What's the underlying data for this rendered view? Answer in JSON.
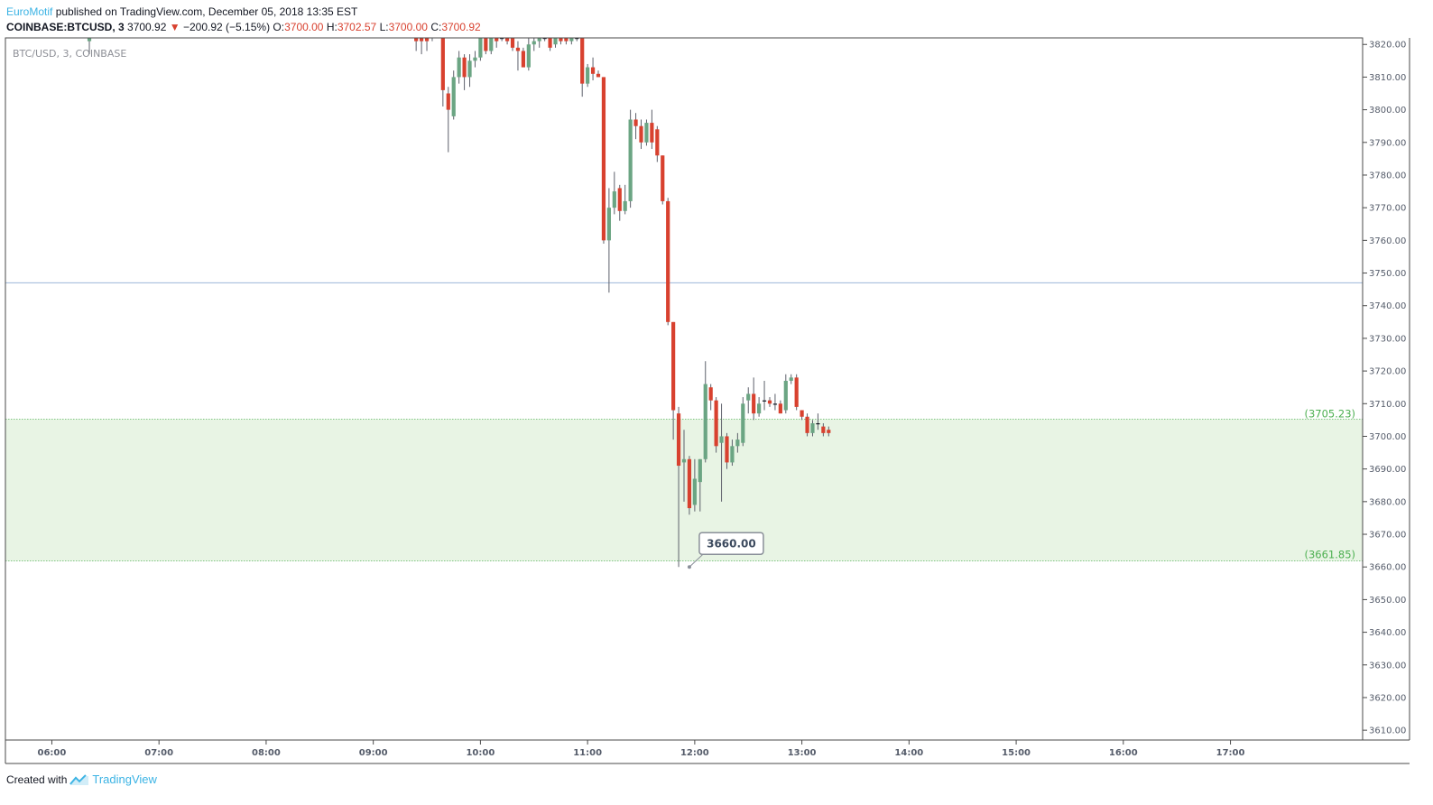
{
  "header": {
    "author": "EuroMotif",
    "published_text": " published on TradingView.com, December 05, 2018 13:35 EST",
    "symbol": "COINBASE:BTCUSD, 3",
    "last_price": "3700.92",
    "change_arrow": "▼",
    "change": "−200.92 (−5.15%)",
    "open_label": "O:",
    "open_value": "3700.00",
    "high_label": "H:",
    "high_value": "3702.57",
    "low_label": "L:",
    "low_value": "3700.00",
    "close_label": "C:",
    "close_value": "3700.92"
  },
  "footer": {
    "created_with": "Created with",
    "brand": "TradingView"
  },
  "chart_data": {
    "type": "candlestick",
    "symbol_label": "BTC/USD, 3, COINBASE",
    "x_tick_labels": [
      "06:00",
      "07:00",
      "08:00",
      "09:00",
      "10:00",
      "11:00",
      "12:00",
      "13:00",
      "14:00",
      "15:00",
      "16:00",
      "17:00"
    ],
    "y_tick_labels": [
      "3820.00",
      "3810.00",
      "3800.00",
      "3790.00",
      "3780.00",
      "3770.00",
      "3760.00",
      "3750.00",
      "3740.00",
      "3730.00",
      "3720.00",
      "3710.00",
      "3700.00",
      "3690.00",
      "3680.00",
      "3670.00",
      "3660.00",
      "3650.00",
      "3640.00",
      "3630.00",
      "3620.00",
      "3610.00"
    ],
    "ylim": [
      3607,
      3822
    ],
    "x_range_minutes": [
      334,
      1094
    ],
    "grid": false,
    "colors": {
      "up": "#6ba583",
      "down": "#d8412f",
      "zone_fill": "#e8f4e4",
      "zone_line": "#81c784",
      "hline": "#9cb7d8"
    },
    "horizontal_line": {
      "value": 3747
    },
    "zone": {
      "upper": 3705.23,
      "lower": 3661.85,
      "upper_label": "(3705.23)",
      "lower_label": "(3661.85)"
    },
    "callout": {
      "label": "3660.00",
      "value": 3660,
      "time": "11:57"
    },
    "candles": [
      {
        "t": "06:21",
        "o": 3821,
        "h": 3824,
        "l": 3817,
        "c": 3823
      },
      {
        "t": "09:24",
        "o": 3823,
        "h": 3825,
        "l": 3818,
        "c": 3821
      },
      {
        "t": "09:27",
        "o": 3822,
        "h": 3823,
        "l": 3817,
        "c": 3821
      },
      {
        "t": "09:30",
        "o": 3822,
        "h": 3826,
        "l": 3818,
        "c": 3821
      },
      {
        "t": "09:33",
        "o": 3823,
        "h": 3826,
        "l": 3821,
        "c": 3824
      },
      {
        "t": "09:36",
        "o": 3824,
        "h": 3826,
        "l": 3823,
        "c": 3822
      },
      {
        "t": "09:39",
        "o": 3823,
        "h": 3824,
        "l": 3801,
        "c": 3806
      },
      {
        "t": "09:42",
        "o": 3805,
        "h": 3807,
        "l": 3787,
        "c": 3800
      },
      {
        "t": "09:45",
        "o": 3798,
        "h": 3812,
        "l": 3797,
        "c": 3810
      },
      {
        "t": "09:48",
        "o": 3810,
        "h": 3818,
        "l": 3808,
        "c": 3816
      },
      {
        "t": "09:51",
        "o": 3816,
        "h": 3817,
        "l": 3806,
        "c": 3810
      },
      {
        "t": "09:54",
        "o": 3810,
        "h": 3817,
        "l": 3807,
        "c": 3815
      },
      {
        "t": "09:57",
        "o": 3815,
        "h": 3818,
        "l": 3813,
        "c": 3816
      },
      {
        "t": "10:00",
        "o": 3816,
        "h": 3823,
        "l": 3815,
        "c": 3822
      },
      {
        "t": "10:03",
        "o": 3822,
        "h": 3823,
        "l": 3817,
        "c": 3818
      },
      {
        "t": "10:06",
        "o": 3818,
        "h": 3826,
        "l": 3817,
        "c": 3824
      },
      {
        "t": "10:09",
        "o": 3823,
        "h": 3824,
        "l": 3819,
        "c": 3821
      },
      {
        "t": "10:12",
        "o": 3822,
        "h": 3824,
        "l": 3821,
        "c": 3822
      },
      {
        "t": "10:15",
        "o": 3822,
        "h": 3823,
        "l": 3820,
        "c": 3821
      },
      {
        "t": "10:18",
        "o": 3823,
        "h": 3826,
        "l": 3818,
        "c": 3819
      },
      {
        "t": "10:21",
        "o": 3819,
        "h": 3821,
        "l": 3812,
        "c": 3818
      },
      {
        "t": "10:24",
        "o": 3818,
        "h": 3819,
        "l": 3813,
        "c": 3813
      },
      {
        "t": "10:27",
        "o": 3813,
        "h": 3822,
        "l": 3812,
        "c": 3820
      },
      {
        "t": "10:30",
        "o": 3820,
        "h": 3822,
        "l": 3818,
        "c": 3821
      },
      {
        "t": "10:33",
        "o": 3821,
        "h": 3822,
        "l": 3819,
        "c": 3822
      },
      {
        "t": "10:36",
        "o": 3822,
        "h": 3823,
        "l": 3821,
        "c": 3822
      },
      {
        "t": "10:39",
        "o": 3822,
        "h": 3824,
        "l": 3818,
        "c": 3819
      },
      {
        "t": "10:42",
        "o": 3820,
        "h": 3824,
        "l": 3819,
        "c": 3823
      },
      {
        "t": "10:45",
        "o": 3823,
        "h": 3824,
        "l": 3820,
        "c": 3821
      },
      {
        "t": "10:48",
        "o": 3822,
        "h": 3823,
        "l": 3820,
        "c": 3821
      },
      {
        "t": "10:51",
        "o": 3821,
        "h": 3823,
        "l": 3820,
        "c": 3822
      },
      {
        "t": "10:54",
        "o": 3822,
        "h": 3823,
        "l": 3821,
        "c": 3822
      },
      {
        "t": "10:57",
        "o": 3823,
        "h": 3824,
        "l": 3804,
        "c": 3808
      },
      {
        "t": "11:00",
        "o": 3808,
        "h": 3814,
        "l": 3807,
        "c": 3813
      },
      {
        "t": "11:03",
        "o": 3813,
        "h": 3816,
        "l": 3809,
        "c": 3811
      },
      {
        "t": "11:06",
        "o": 3811,
        "h": 3812,
        "l": 3810,
        "c": 3810
      },
      {
        "t": "11:09",
        "o": 3810,
        "h": 3810,
        "l": 3759,
        "c": 3760
      },
      {
        "t": "11:12",
        "o": 3760,
        "h": 3776,
        "l": 3744,
        "c": 3770
      },
      {
        "t": "11:15",
        "o": 3770,
        "h": 3781,
        "l": 3768,
        "c": 3775
      },
      {
        "t": "11:18",
        "o": 3776,
        "h": 3777,
        "l": 3766,
        "c": 3769
      },
      {
        "t": "11:21",
        "o": 3769,
        "h": 3777,
        "l": 3768,
        "c": 3772
      },
      {
        "t": "11:24",
        "o": 3772,
        "h": 3800,
        "l": 3770,
        "c": 3797
      },
      {
        "t": "11:27",
        "o": 3797,
        "h": 3799,
        "l": 3791,
        "c": 3795
      },
      {
        "t": "11:30",
        "o": 3795,
        "h": 3797,
        "l": 3788,
        "c": 3790
      },
      {
        "t": "11:33",
        "o": 3790,
        "h": 3797,
        "l": 3789,
        "c": 3796
      },
      {
        "t": "11:36",
        "o": 3796,
        "h": 3800,
        "l": 3788,
        "c": 3790
      },
      {
        "t": "11:39",
        "o": 3794,
        "h": 3795,
        "l": 3784,
        "c": 3786
      },
      {
        "t": "11:42",
        "o": 3786,
        "h": 3786,
        "l": 3771,
        "c": 3772
      },
      {
        "t": "11:45",
        "o": 3772,
        "h": 3773,
        "l": 3734,
        "c": 3735
      },
      {
        "t": "11:48",
        "o": 3735,
        "h": 3735,
        "l": 3699,
        "c": 3708
      },
      {
        "t": "11:51",
        "o": 3707,
        "h": 3709,
        "l": 3660,
        "c": 3691
      },
      {
        "t": "11:54",
        "o": 3692,
        "h": 3702,
        "l": 3680,
        "c": 3693
      },
      {
        "t": "11:57",
        "o": 3693,
        "h": 3694,
        "l": 3676,
        "c": 3678
      },
      {
        "t": "12:00",
        "o": 3679,
        "h": 3693,
        "l": 3677,
        "c": 3687
      },
      {
        "t": "12:03",
        "o": 3686,
        "h": 3693,
        "l": 3677,
        "c": 3693
      },
      {
        "t": "12:06",
        "o": 3693,
        "h": 3723,
        "l": 3692,
        "c": 3716
      },
      {
        "t": "12:09",
        "o": 3715,
        "h": 3716,
        "l": 3708,
        "c": 3711
      },
      {
        "t": "12:12",
        "o": 3711,
        "h": 3712,
        "l": 3695,
        "c": 3697
      },
      {
        "t": "12:15",
        "o": 3698,
        "h": 3710,
        "l": 3680,
        "c": 3700
      },
      {
        "t": "12:18",
        "o": 3700,
        "h": 3701,
        "l": 3690,
        "c": 3692
      },
      {
        "t": "12:21",
        "o": 3692,
        "h": 3699,
        "l": 3691,
        "c": 3697
      },
      {
        "t": "12:24",
        "o": 3697,
        "h": 3701,
        "l": 3695,
        "c": 3699
      },
      {
        "t": "12:27",
        "o": 3698,
        "h": 3712,
        "l": 3697,
        "c": 3710
      },
      {
        "t": "12:30",
        "o": 3711,
        "h": 3715,
        "l": 3707,
        "c": 3713
      },
      {
        "t": "12:33",
        "o": 3713,
        "h": 3718,
        "l": 3705,
        "c": 3707
      },
      {
        "t": "12:36",
        "o": 3707,
        "h": 3712,
        "l": 3706,
        "c": 3710
      },
      {
        "t": "12:39",
        "o": 3711,
        "h": 3717,
        "l": 3708,
        "c": 3711
      },
      {
        "t": "12:42",
        "o": 3711,
        "h": 3712,
        "l": 3709,
        "c": 3710
      },
      {
        "t": "12:45",
        "o": 3710,
        "h": 3713,
        "l": 3708,
        "c": 3710
      },
      {
        "t": "12:48",
        "o": 3710,
        "h": 3711,
        "l": 3707,
        "c": 3707
      },
      {
        "t": "12:51",
        "o": 3708,
        "h": 3719,
        "l": 3707,
        "c": 3717
      },
      {
        "t": "12:54",
        "o": 3717,
        "h": 3719,
        "l": 3716,
        "c": 3718
      },
      {
        "t": "12:57",
        "o": 3718,
        "h": 3719,
        "l": 3708,
        "c": 3709
      },
      {
        "t": "13:00",
        "o": 3708,
        "h": 3708,
        "l": 3705,
        "c": 3706
      },
      {
        "t": "13:03",
        "o": 3706,
        "h": 3707,
        "l": 3700,
        "c": 3701
      },
      {
        "t": "13:06",
        "o": 3701,
        "h": 3705,
        "l": 3700,
        "c": 3704
      },
      {
        "t": "13:09",
        "o": 3704,
        "h": 3707,
        "l": 3702,
        "c": 3704
      },
      {
        "t": "13:12",
        "o": 3703,
        "h": 3704,
        "l": 3700,
        "c": 3701
      },
      {
        "t": "13:15",
        "o": 3702,
        "h": 3703,
        "l": 3700,
        "c": 3701
      }
    ]
  }
}
